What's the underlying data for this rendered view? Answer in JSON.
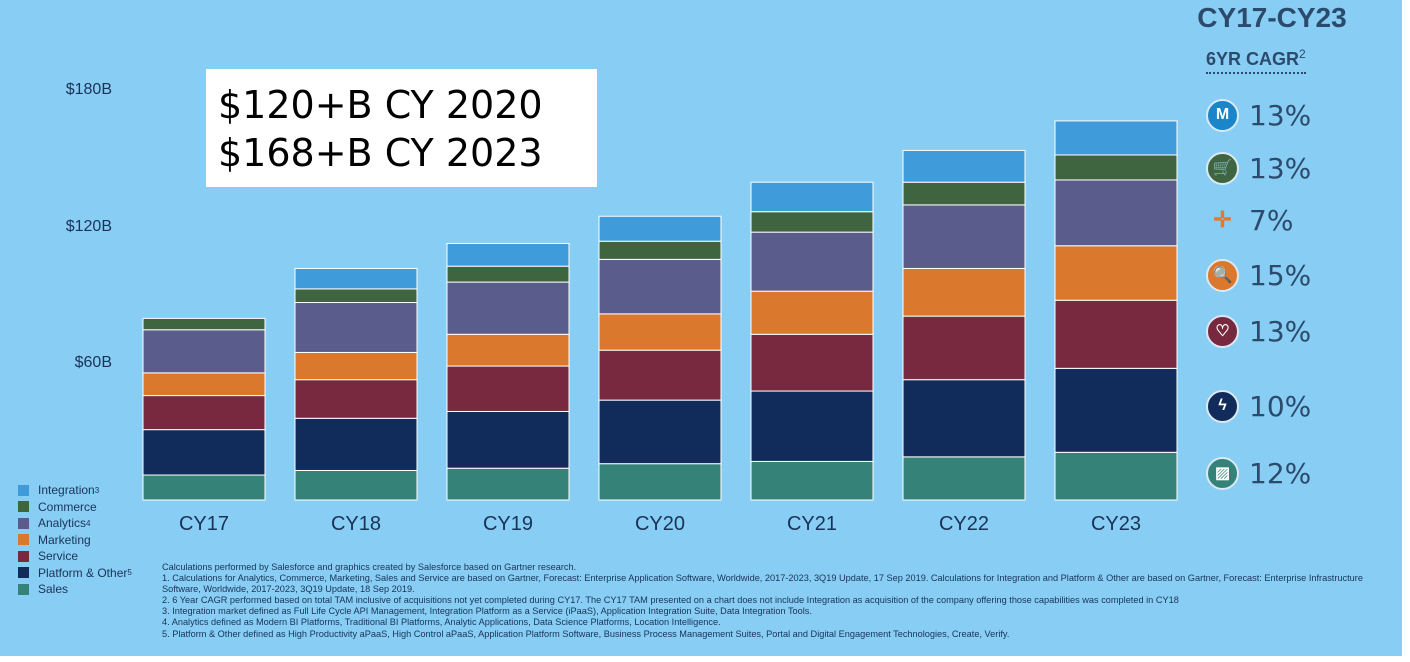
{
  "chart_data": {
    "type": "bar",
    "stacked": true,
    "title": "",
    "xlabel": "",
    "ylabel": "",
    "ylim": [
      0,
      200
    ],
    "categories": [
      "CY17",
      "CY18",
      "CY19",
      "CY20",
      "CY21",
      "CY22",
      "CY23"
    ],
    "y_tick_values": [
      60,
      120,
      180
    ],
    "y_tick_labels": [
      "$60B",
      "$120B",
      "$180B"
    ],
    "series": [
      {
        "name": "Sales",
        "color": "#358378",
        "values": [
          11,
          13,
          14,
          16,
          17,
          19,
          21
        ]
      },
      {
        "name": "Platform & Other",
        "color": "#112c5a",
        "values": [
          20,
          23,
          25,
          28,
          31,
          34,
          37
        ]
      },
      {
        "name": "Service",
        "color": "#78283f",
        "values": [
          15,
          17,
          20,
          22,
          25,
          28,
          30
        ]
      },
      {
        "name": "Marketing",
        "color": "#da782e",
        "values": [
          10,
          12,
          14,
          16,
          19,
          21,
          24
        ]
      },
      {
        "name": "Analytics",
        "color": "#5a5d8b",
        "values": [
          19,
          22,
          23,
          24,
          26,
          28,
          29
        ]
      },
      {
        "name": "Commerce",
        "color": "#3e6440",
        "values": [
          5,
          6,
          7,
          8,
          9,
          10,
          11
        ]
      },
      {
        "name": "Integration",
        "color": "#3f9bd9",
        "values": [
          0,
          9,
          10,
          11,
          13,
          14,
          15
        ]
      }
    ],
    "legend_position": "bottom-left"
  },
  "callout": {
    "line1": "$120+B CY 2020",
    "line2": "$168+B CY 2023"
  },
  "cagr": {
    "title": "CY17-CY23",
    "subtitle": "6YR CAGR",
    "subtitle_sup": "2",
    "items": [
      {
        "icon": "mulesoft-icon",
        "color": "#1a85c8",
        "glyph": "M",
        "value": "13%"
      },
      {
        "icon": "commerce-cart-icon",
        "color": "#3e6440",
        "glyph": "🛒",
        "value": "13%"
      },
      {
        "icon": "tableau-icon",
        "color": "#87cdf4",
        "glyph": "✛",
        "value": "7%"
      },
      {
        "icon": "marketing-search-icon",
        "color": "#da782e",
        "glyph": "🔍",
        "value": "15%"
      },
      {
        "icon": "service-heart-icon",
        "color": "#78283f",
        "glyph": "♡",
        "value": "13%"
      },
      {
        "icon": "platform-lightning-icon",
        "color": "#112c5a",
        "glyph": "ϟ",
        "value": "10%"
      },
      {
        "icon": "sales-chart-icon",
        "color": "#358378",
        "glyph": "▨",
        "value": "12%"
      }
    ]
  },
  "legend": [
    {
      "label": "Integration",
      "sup": "3",
      "color": "#3f9bd9"
    },
    {
      "label": "Commerce",
      "sup": "",
      "color": "#3e6440"
    },
    {
      "label": "Analytics",
      "sup": "4",
      "color": "#5a5d8b"
    },
    {
      "label": "Marketing",
      "sup": "",
      "color": "#da782e"
    },
    {
      "label": "Service",
      "sup": "",
      "color": "#78283f"
    },
    {
      "label": "Platform & Other",
      "sup": "5",
      "color": "#112c5a"
    },
    {
      "label": "Sales",
      "sup": "",
      "color": "#358378"
    }
  ],
  "footnotes": [
    "Calculations performed by Salesforce and graphics created by Salesforce based on Gartner research.",
    "1. Calculations for Analytics, Commerce, Marketing, Sales and Service are based on Gartner, Forecast: Enterprise Application Software, Worldwide, 2017-2023, 3Q19 Update, 17 Sep 2019. Calculations for Integration and Platform & Other are based on Gartner, Forecast: Enterprise Infrastructure Software, Worldwide, 2017-2023, 3Q19 Update, 18 Sep 2019.",
    "2. 6 Year CAGR performed based on total TAM inclusive of acquisitions not yet completed during CY17. The CY17 TAM presented on a chart does not include Integration as acquisition of the company offering those capabilities was completed in CY18",
    "3. Integration market defined as Full Life Cycle API Management, Integration Platform as a Service (iPaaS), Application Integration Suite, Data Integration Tools.",
    "4. Analytics defined as Modern BI Platforms, Traditional BI Platforms, Analytic Applications, Data Science Platforms, Location Intelligence.",
    "5. Platform & Other defined as High Productivity aPaaS, High Control aPaaS, Application Platform Software, Business Process Management Suites, Portal and Digital Engagement Technologies, Create, Verify."
  ]
}
